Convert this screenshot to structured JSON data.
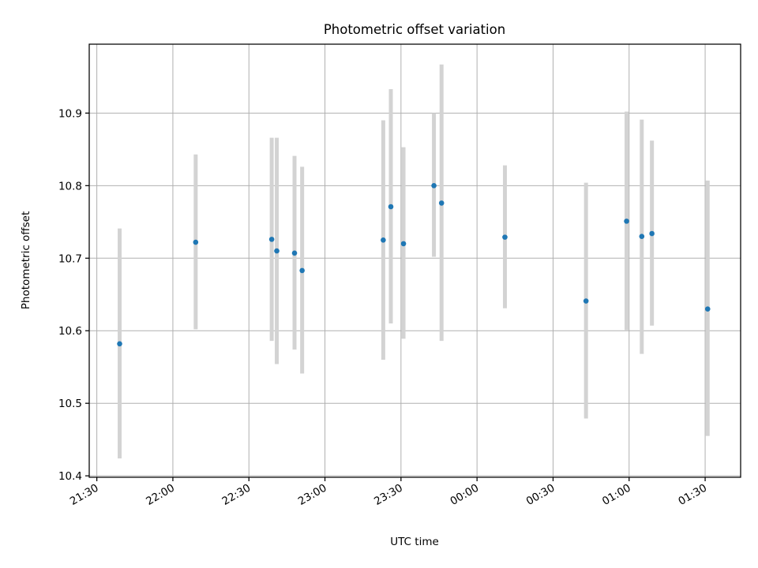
{
  "chart_data": {
    "type": "scatter",
    "title": "Photometric offset variation",
    "xlabel": "UTC time",
    "ylabel": "Photometric offset",
    "x_axis_type": "time",
    "xlim": [
      "21:27",
      "01:44"
    ],
    "ylim": [
      10.398,
      10.995
    ],
    "grid": true,
    "legend": "none",
    "colors": {
      "points": "#1f77b4",
      "error_bars": "#d3d3d3"
    },
    "x_ticks": [
      "21:30",
      "22:00",
      "22:30",
      "23:00",
      "23:30",
      "00:00",
      "00:30",
      "01:00",
      "01:30"
    ],
    "y_ticks": [
      10.4,
      10.5,
      10.6,
      10.7,
      10.8,
      10.9
    ],
    "y_tick_labels": [
      "10.4",
      "10.5",
      "10.6",
      "10.7",
      "10.8",
      "10.9"
    ],
    "series": [
      {
        "points": [
          {
            "t": "21:39",
            "y": 10.582,
            "ylow": 10.424,
            "yhigh": 10.741
          },
          {
            "t": "22:09",
            "y": 10.722,
            "ylow": 10.602,
            "yhigh": 10.843
          },
          {
            "t": "22:39",
            "y": 10.726,
            "ylow": 10.586,
            "yhigh": 10.866
          },
          {
            "t": "22:41",
            "y": 10.71,
            "ylow": 10.554,
            "yhigh": 10.866
          },
          {
            "t": "22:48",
            "y": 10.707,
            "ylow": 10.574,
            "yhigh": 10.841
          },
          {
            "t": "22:51",
            "y": 10.683,
            "ylow": 10.541,
            "yhigh": 10.826
          },
          {
            "t": "23:23",
            "y": 10.725,
            "ylow": 10.56,
            "yhigh": 10.89
          },
          {
            "t": "23:26",
            "y": 10.771,
            "ylow": 10.61,
            "yhigh": 10.933
          },
          {
            "t": "23:31",
            "y": 10.72,
            "ylow": 10.589,
            "yhigh": 10.853
          },
          {
            "t": "23:43",
            "y": 10.8,
            "ylow": 10.702,
            "yhigh": 10.9
          },
          {
            "t": "23:46",
            "y": 10.776,
            "ylow": 10.586,
            "yhigh": 10.967
          },
          {
            "t": "00:11",
            "y": 10.729,
            "ylow": 10.631,
            "yhigh": 10.828
          },
          {
            "t": "00:43",
            "y": 10.641,
            "ylow": 10.479,
            "yhigh": 10.804
          },
          {
            "t": "00:59",
            "y": 10.751,
            "ylow": 10.601,
            "yhigh": 10.902
          },
          {
            "t": "01:05",
            "y": 10.73,
            "ylow": 10.568,
            "yhigh": 10.891
          },
          {
            "t": "01:09",
            "y": 10.734,
            "ylow": 10.607,
            "yhigh": 10.862
          },
          {
            "t": "01:31",
            "y": 10.63,
            "ylow": 10.455,
            "yhigh": 10.807
          }
        ]
      }
    ]
  }
}
